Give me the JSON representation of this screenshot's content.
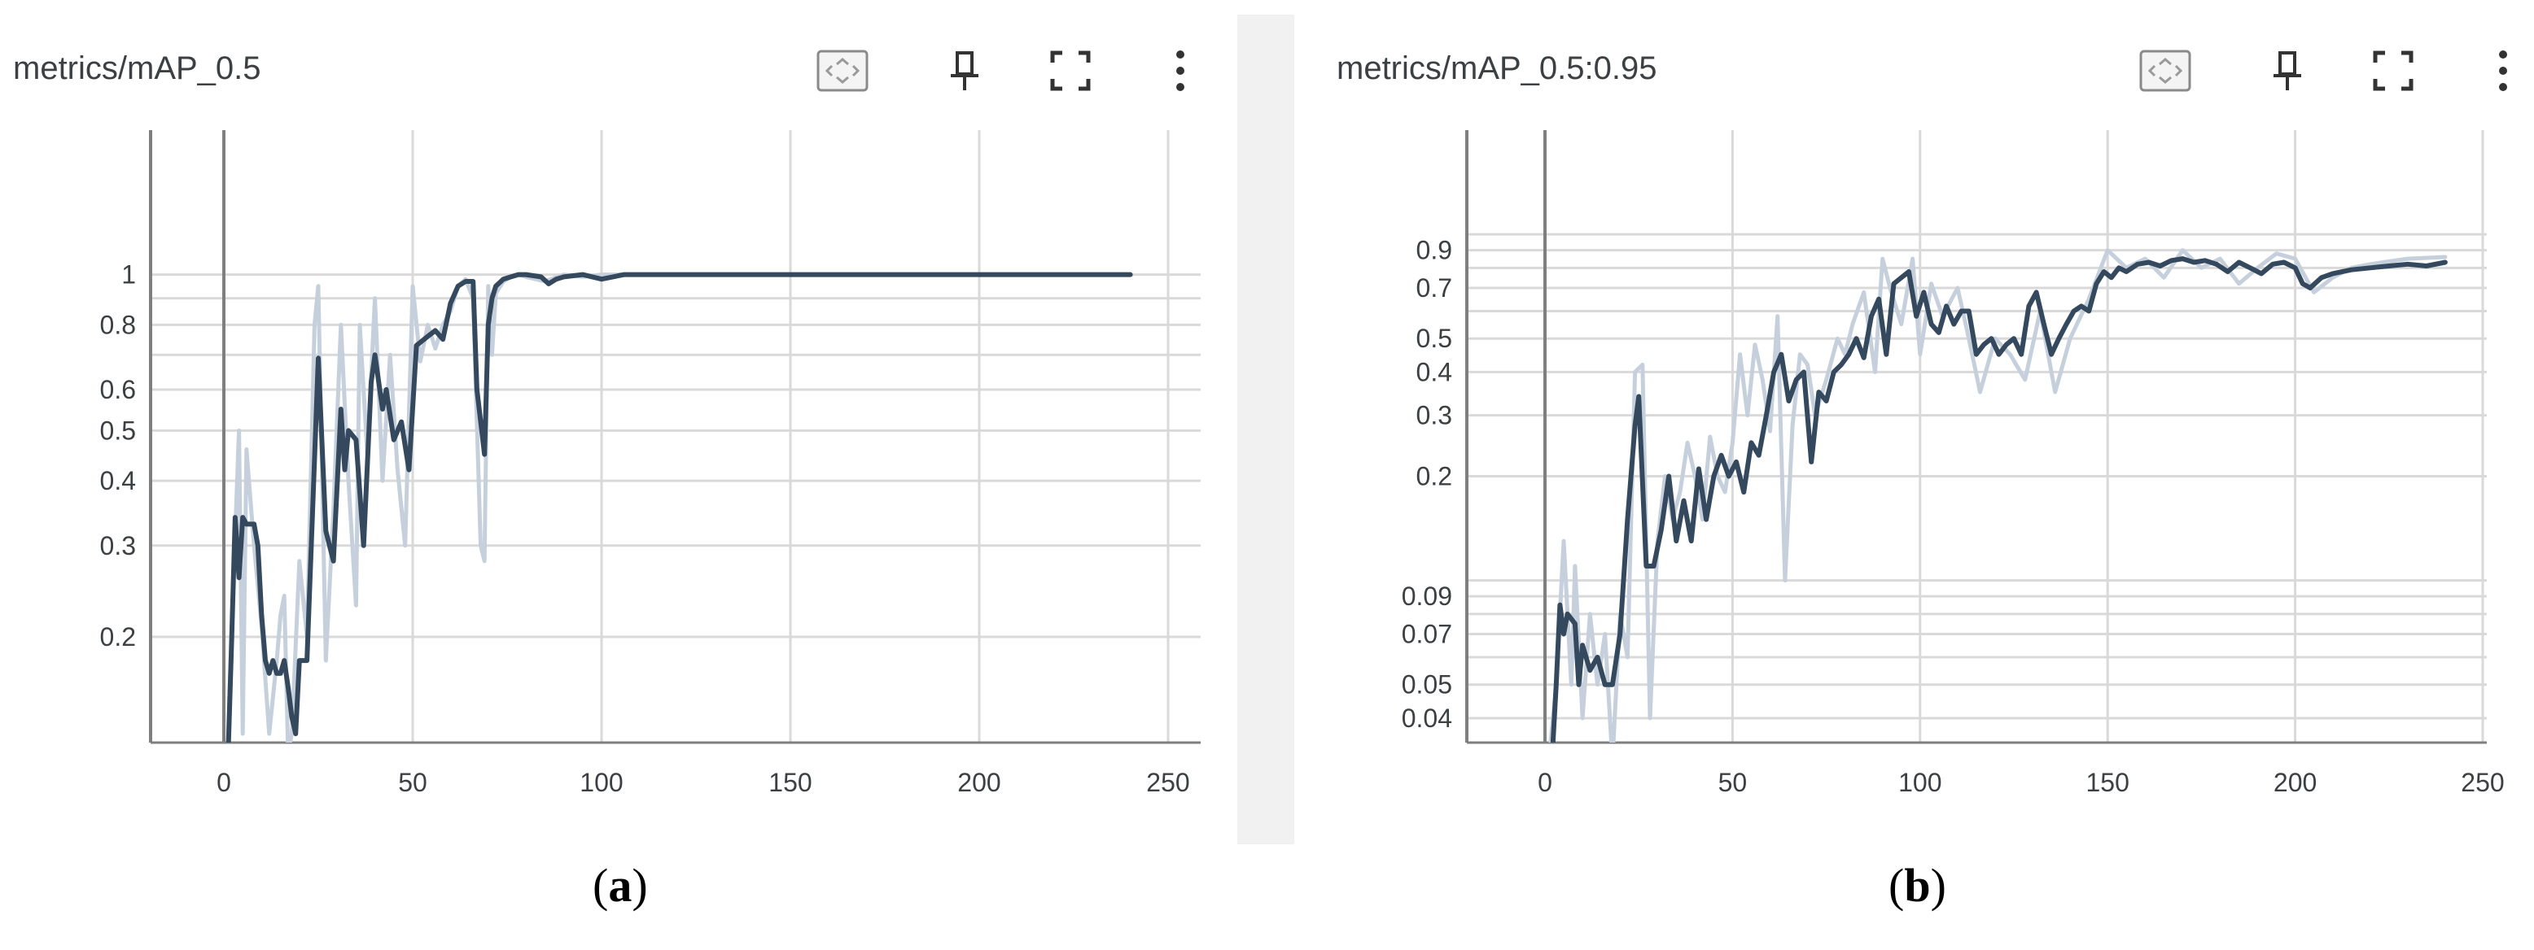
{
  "cards": [
    {
      "title": "metrics/mAP_0.5",
      "caption": {
        "open": "(",
        "letter": "a",
        "close": ")"
      },
      "toolbar": [
        "fit-domain-icon",
        "pin-icon",
        "fullscreen-icon",
        "more-vert-icon"
      ]
    },
    {
      "title": "metrics/mAP_0.5:0.95",
      "caption": {
        "open": "(",
        "letter": "b",
        "close": ")"
      },
      "toolbar": [
        "fit-domain-icon",
        "pin-icon",
        "fullscreen-icon",
        "more-vert-icon"
      ]
    }
  ],
  "colors": {
    "smoothed": "#34495e",
    "raw": "#c5d0dc",
    "grid": "#d9d9d9",
    "axis": "#7f7f7f",
    "divider": "#f1f1f1"
  },
  "chart_data": [
    {
      "type": "line",
      "title": "metrics/mAP_0.5",
      "xlabel": "",
      "ylabel": "",
      "y_scale": "log",
      "xlim": [
        -20,
        255
      ],
      "ylim": [
        0.125,
        1.9
      ],
      "x_ticks": [
        0,
        50,
        100,
        150,
        200,
        250
      ],
      "y_ticks": [
        0.2,
        0.3,
        0.4,
        0.5,
        0.6,
        0.8,
        1
      ],
      "y_tick_labels": [
        "0.2",
        "0.3",
        "0.4",
        "0.5",
        "0.6",
        "0.8",
        "1"
      ],
      "extra_gridlines": [
        0.7,
        0.9
      ],
      "grid": true,
      "series": [
        {
          "role": "raw",
          "x": [
            1,
            2,
            4,
            5,
            6,
            8,
            10,
            12,
            14,
            15,
            16,
            17,
            18,
            20,
            22,
            24,
            25,
            27,
            29,
            31,
            33,
            35,
            36,
            38,
            40,
            42,
            44,
            46,
            48,
            50,
            52,
            54,
            56,
            58,
            60,
            62,
            64,
            66,
            68,
            69,
            70,
            71,
            72,
            74,
            76,
            78,
            80,
            85,
            90,
            95,
            100,
            110,
            120,
            150,
            200,
            240
          ],
          "y": [
            0.12,
            0.2,
            0.5,
            0.13,
            0.46,
            0.3,
            0.21,
            0.13,
            0.18,
            0.22,
            0.24,
            0.12,
            0.13,
            0.28,
            0.2,
            0.8,
            0.95,
            0.18,
            0.35,
            0.8,
            0.4,
            0.23,
            0.8,
            0.45,
            0.9,
            0.4,
            0.7,
            0.42,
            0.3,
            0.95,
            0.68,
            0.8,
            0.72,
            0.8,
            0.85,
            0.95,
            0.98,
            0.9,
            0.3,
            0.28,
            0.95,
            0.7,
            0.92,
            0.97,
            0.99,
            1.0,
            0.99,
            0.97,
            1.0,
            0.99,
            1.0,
            1.0,
            1.0,
            1.0,
            1.0,
            1.0
          ]
        },
        {
          "role": "smoothed",
          "x": [
            1,
            2,
            3,
            4,
            5,
            6,
            8,
            9,
            10,
            11,
            12,
            13,
            14,
            15,
            16,
            17,
            18,
            19,
            20,
            22,
            24,
            25,
            27,
            29,
            31,
            32,
            33,
            35,
            37,
            39,
            40,
            42,
            43,
            45,
            47,
            49,
            51,
            52,
            54,
            56,
            58,
            60,
            62,
            64,
            66,
            67,
            69,
            70,
            71,
            72,
            74,
            76,
            78,
            80,
            84,
            86,
            88,
            90,
            95,
            100,
            103,
            106,
            120,
            150,
            200,
            240
          ],
          "y": [
            0.11,
            0.19,
            0.34,
            0.26,
            0.34,
            0.33,
            0.33,
            0.3,
            0.22,
            0.18,
            0.17,
            0.18,
            0.17,
            0.17,
            0.18,
            0.16,
            0.14,
            0.13,
            0.18,
            0.18,
            0.44,
            0.69,
            0.32,
            0.28,
            0.55,
            0.42,
            0.5,
            0.48,
            0.3,
            0.62,
            0.7,
            0.55,
            0.6,
            0.48,
            0.52,
            0.42,
            0.73,
            0.74,
            0.76,
            0.78,
            0.75,
            0.88,
            0.95,
            0.97,
            0.97,
            0.6,
            0.45,
            0.8,
            0.9,
            0.95,
            0.98,
            0.99,
            1.0,
            1.0,
            0.99,
            0.96,
            0.98,
            0.99,
            1.0,
            0.98,
            0.99,
            1.0,
            1.0,
            1.0,
            1.0,
            1.0
          ]
        }
      ]
    },
    {
      "type": "line",
      "title": "metrics/mAP_0.5:0.95",
      "xlabel": "",
      "ylabel": "",
      "y_scale": "log",
      "xlim": [
        -20,
        255
      ],
      "ylim": [
        0.034,
        2.0
      ],
      "x_ticks": [
        0,
        50,
        100,
        150,
        200,
        250
      ],
      "y_ticks": [
        0.04,
        0.05,
        0.07,
        0.09,
        0.2,
        0.3,
        0.4,
        0.5,
        0.7,
        0.9
      ],
      "y_tick_labels": [
        "0.04",
        "0.05",
        "0.07",
        "0.09",
        "0.2",
        "0.3",
        "0.4",
        "0.5",
        "0.7",
        "0.9"
      ],
      "extra_gridlines": [
        0.06,
        0.08,
        0.1,
        0.6,
        0.8,
        1.0
      ],
      "grid": true,
      "series": [
        {
          "role": "raw",
          "x": [
            1,
            3,
            5,
            7,
            8,
            10,
            12,
            14,
            16,
            18,
            20,
            22,
            24,
            26,
            28,
            30,
            32,
            34,
            36,
            38,
            40,
            42,
            44,
            46,
            48,
            50,
            52,
            54,
            56,
            58,
            60,
            62,
            64,
            66,
            68,
            70,
            72,
            75,
            78,
            80,
            82,
            85,
            88,
            90,
            92,
            95,
            98,
            100,
            103,
            106,
            110,
            113,
            116,
            120,
            124,
            128,
            132,
            136,
            140,
            145,
            150,
            155,
            160,
            165,
            170,
            175,
            180,
            185,
            190,
            195,
            200,
            205,
            210,
            215,
            220,
            230,
            240
          ],
          "y": [
            0.03,
            0.05,
            0.13,
            0.05,
            0.11,
            0.04,
            0.08,
            0.05,
            0.07,
            0.03,
            0.08,
            0.06,
            0.4,
            0.42,
            0.04,
            0.13,
            0.2,
            0.15,
            0.18,
            0.25,
            0.2,
            0.15,
            0.26,
            0.2,
            0.18,
            0.25,
            0.45,
            0.3,
            0.48,
            0.38,
            0.27,
            0.58,
            0.1,
            0.28,
            0.45,
            0.42,
            0.3,
            0.38,
            0.5,
            0.45,
            0.55,
            0.68,
            0.4,
            0.85,
            0.7,
            0.55,
            0.85,
            0.45,
            0.72,
            0.58,
            0.7,
            0.5,
            0.35,
            0.5,
            0.45,
            0.38,
            0.6,
            0.35,
            0.5,
            0.65,
            0.9,
            0.8,
            0.85,
            0.75,
            0.9,
            0.8,
            0.85,
            0.72,
            0.8,
            0.88,
            0.85,
            0.68,
            0.75,
            0.8,
            0.82,
            0.85,
            0.86
          ]
        },
        {
          "role": "smoothed",
          "x": [
            2,
            3,
            4,
            5,
            6,
            8,
            9,
            10,
            12,
            14,
            16,
            18,
            20,
            22,
            24,
            25,
            27,
            29,
            31,
            33,
            35,
            37,
            39,
            41,
            43,
            45,
            47,
            49,
            51,
            53,
            55,
            57,
            59,
            61,
            63,
            65,
            67,
            69,
            71,
            73,
            75,
            77,
            79,
            81,
            83,
            85,
            87,
            89,
            91,
            93,
            95,
            97,
            99,
            101,
            103,
            105,
            107,
            109,
            111,
            113,
            115,
            117,
            119,
            121,
            123,
            125,
            127,
            129,
            131,
            133,
            135,
            137,
            139,
            141,
            143,
            145,
            147,
            149,
            151,
            153,
            155,
            158,
            161,
            164,
            167,
            170,
            173,
            176,
            179,
            182,
            185,
            188,
            191,
            194,
            197,
            200,
            202,
            204,
            207,
            210,
            215,
            220,
            225,
            230,
            235,
            240
          ],
          "y": [
            0.032,
            0.05,
            0.085,
            0.07,
            0.08,
            0.075,
            0.05,
            0.065,
            0.055,
            0.06,
            0.05,
            0.05,
            0.07,
            0.15,
            0.28,
            0.34,
            0.11,
            0.11,
            0.14,
            0.2,
            0.13,
            0.17,
            0.13,
            0.21,
            0.15,
            0.2,
            0.23,
            0.2,
            0.22,
            0.18,
            0.25,
            0.23,
            0.3,
            0.4,
            0.45,
            0.33,
            0.38,
            0.4,
            0.22,
            0.35,
            0.33,
            0.4,
            0.42,
            0.45,
            0.5,
            0.44,
            0.58,
            0.65,
            0.45,
            0.72,
            0.75,
            0.78,
            0.58,
            0.68,
            0.55,
            0.52,
            0.62,
            0.55,
            0.6,
            0.6,
            0.45,
            0.48,
            0.5,
            0.45,
            0.48,
            0.5,
            0.45,
            0.62,
            0.68,
            0.55,
            0.45,
            0.5,
            0.55,
            0.6,
            0.62,
            0.6,
            0.72,
            0.78,
            0.75,
            0.8,
            0.78,
            0.82,
            0.83,
            0.81,
            0.84,
            0.85,
            0.83,
            0.84,
            0.82,
            0.78,
            0.83,
            0.8,
            0.77,
            0.82,
            0.83,
            0.8,
            0.72,
            0.7,
            0.75,
            0.77,
            0.79,
            0.8,
            0.81,
            0.82,
            0.81,
            0.83
          ]
        }
      ]
    }
  ]
}
